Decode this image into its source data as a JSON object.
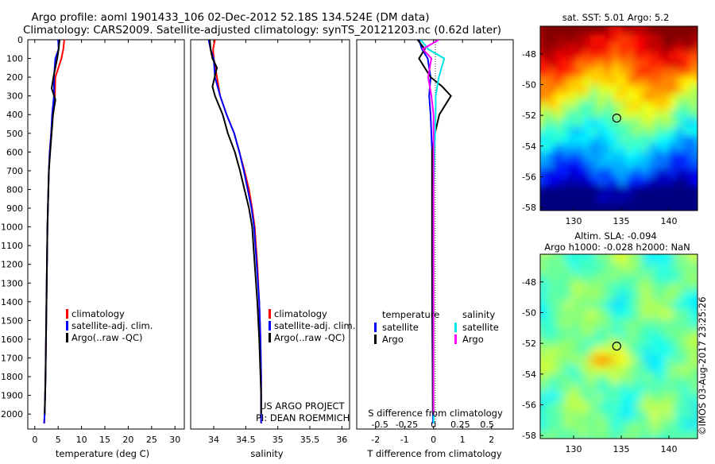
{
  "title_line1": "Argo profile: aoml 1901433_106 02-Dec-2012 52.18S 134.524E (DM data)",
  "title_line2": "Climatology: CARS2009. Satellite-adjusted climatology: synTS_20121203.nc (0.62d later)",
  "colors": {
    "clim": "#ff0000",
    "satadj": "#0000ff",
    "argo": "#000000",
    "sal_sat": "#00e5e5",
    "sal_argo": "#ff00ff"
  },
  "project_line1": "US ARGO PROJECT",
  "project_line2": "PI: DEAN ROEMMICH",
  "stamp": "©IMOS 03-Aug-2017 23:25:26",
  "chart_data": [
    {
      "type": "line",
      "id": "temperature",
      "xlabel": "temperature (deg C)",
      "xlim": [
        -1.5,
        32
      ],
      "ylim": [
        2080,
        0
      ],
      "xticks": [
        "0",
        "5",
        "10",
        "15",
        "20",
        "25",
        "30"
      ],
      "yticks": [
        "0",
        "100",
        "200",
        "300",
        "400",
        "500",
        "600",
        "700",
        "800",
        "900",
        "1000",
        "1100",
        "1200",
        "1300",
        "1400",
        "1500",
        "1600",
        "1700",
        "1800",
        "1900",
        "2000"
      ],
      "legend": [
        "climatology",
        "satellite-adj. clim.",
        "Argo(..raw -QC)"
      ],
      "series": [
        {
          "name": "climatology",
          "color": "clim",
          "x": [
            6.3,
            6.1,
            5.7,
            4.4,
            4.3,
            3.8,
            3.5,
            3.2,
            3.0,
            2.9,
            2.8,
            2.7,
            2.6,
            2.5,
            2.4,
            2.3,
            2.2,
            2.1,
            2.0
          ],
          "y": [
            0,
            50,
            100,
            200,
            300,
            400,
            500,
            600,
            700,
            800,
            900,
            1000,
            1200,
            1400,
            1600,
            1800,
            1900,
            2000,
            2050
          ]
        },
        {
          "name": "satellite-adj. clim.",
          "color": "satadj",
          "x": [
            5.0,
            5.1,
            4.4,
            4.1,
            4.1,
            3.7,
            3.5,
            3.2,
            3.0,
            2.9,
            2.8,
            2.7,
            2.6,
            2.5,
            2.4,
            2.3,
            2.2,
            2.1,
            2.0
          ],
          "y": [
            0,
            50,
            100,
            200,
            300,
            400,
            500,
            600,
            700,
            800,
            900,
            1000,
            1200,
            1400,
            1600,
            1800,
            1900,
            2000,
            2050
          ]
        },
        {
          "name": "Argo(..raw -QC)",
          "color": "argo",
          "x": [
            5.3,
            5.1,
            4.8,
            4.0,
            3.6,
            4.4,
            3.9,
            3.6,
            3.3,
            3.0,
            2.9,
            2.8,
            2.7,
            2.6,
            2.5,
            2.4,
            2.3,
            2.2,
            2.1
          ],
          "y": [
            0,
            50,
            100,
            200,
            260,
            320,
            400,
            500,
            600,
            700,
            800,
            900,
            1000,
            1200,
            1400,
            1600,
            1800,
            1900,
            2000
          ]
        }
      ]
    },
    {
      "type": "line",
      "id": "salinity",
      "xlabel": "salinity",
      "xlim": [
        33.64,
        36.12
      ],
      "ylim": [
        2080,
        0
      ],
      "xticks": [
        "34",
        "34.5",
        "35",
        "35.5",
        "36"
      ],
      "legend": [
        "climatology",
        "satellite-adj. clim.",
        "Argo(..raw -QC)"
      ],
      "series": [
        {
          "name": "climatology",
          "color": "clim",
          "x": [
            34.02,
            33.99,
            34.0,
            34.05,
            34.1,
            34.2,
            34.32,
            34.4,
            34.48,
            34.55,
            34.6,
            34.64,
            34.68,
            34.71,
            34.73,
            34.74,
            34.74
          ],
          "y": [
            0,
            50,
            100,
            200,
            300,
            400,
            500,
            600,
            700,
            800,
            900,
            1000,
            1200,
            1400,
            1600,
            1800,
            2050
          ]
        },
        {
          "name": "satellite-adj. clim.",
          "color": "satadj",
          "x": [
            33.92,
            33.95,
            34.0,
            34.02,
            34.1,
            34.2,
            34.32,
            34.4,
            34.47,
            34.53,
            34.59,
            34.63,
            34.67,
            34.71,
            34.73,
            34.74,
            34.74
          ],
          "y": [
            0,
            50,
            100,
            200,
            300,
            400,
            500,
            600,
            700,
            800,
            900,
            1000,
            1200,
            1400,
            1600,
            1800,
            2050
          ]
        },
        {
          "name": "Argo(..raw -QC)",
          "color": "argo",
          "x": [
            33.94,
            33.95,
            33.98,
            34.05,
            33.98,
            34.02,
            34.14,
            34.22,
            34.33,
            34.41,
            34.48,
            34.55,
            34.6,
            34.64,
            34.68,
            34.71,
            34.73,
            34.74,
            34.74
          ],
          "y": [
            0,
            50,
            100,
            150,
            250,
            300,
            400,
            500,
            600,
            700,
            800,
            900,
            1000,
            1200,
            1400,
            1600,
            1800,
            1900,
            2000
          ]
        }
      ]
    },
    {
      "type": "line",
      "id": "differences",
      "xlabel": "T difference from climatology",
      "xlabel_top": "S difference from climatology",
      "xlim": [
        -2.65,
        2.75
      ],
      "ylim": [
        2080,
        0
      ],
      "xticks": [
        "-2",
        "-1",
        "0",
        "1",
        "2"
      ],
      "xticks_top": [
        "-0.5",
        "-0.25",
        "0",
        "0.25",
        "0.5"
      ],
      "legend_left_title": "temperature",
      "legend_left": [
        "satellite",
        "Argo"
      ],
      "legend_right_title": "salinity",
      "legend_right": [
        "satellite",
        "Argo"
      ],
      "series": [
        {
          "name": "temperature satellite",
          "color": "satadj",
          "x": [
            -0.5,
            -0.4,
            -0.2,
            -0.1,
            -0.15,
            -0.1,
            -0.05,
            -0.05,
            -0.05,
            -0.05,
            -0.05,
            -0.03,
            -0.02
          ],
          "y": [
            0,
            50,
            100,
            200,
            300,
            400,
            600,
            800,
            1000,
            1200,
            1400,
            1800,
            2050
          ]
        },
        {
          "name": "temperature Argo",
          "color": "argo",
          "x": [
            -0.55,
            -0.3,
            -0.5,
            -0.1,
            0.3,
            0.6,
            0.2,
            0.05,
            -0.05,
            -0.05,
            -0.05,
            -0.05,
            -0.03,
            -0.02
          ],
          "y": [
            0,
            50,
            100,
            200,
            250,
            300,
            400,
            500,
            600,
            800,
            1000,
            1200,
            1600,
            2000
          ]
        },
        {
          "name": "salinity satellite",
          "color": "sal_sat",
          "x": [
            -0.12,
            -0.05,
            0.1,
            0.05,
            0.02,
            0.02,
            0.01,
            0.0,
            0.0,
            0.0,
            0.0
          ],
          "y": [
            0,
            50,
            100,
            200,
            300,
            400,
            600,
            800,
            1200,
            1600,
            2050
          ]
        },
        {
          "name": "salinity Argo",
          "color": "sal_argo",
          "x": [
            0.05,
            -0.1,
            -0.02,
            -0.05,
            -0.02,
            0.0,
            0.0,
            0.0,
            0.0,
            0.0
          ],
          "y": [
            0,
            50,
            100,
            200,
            300,
            400,
            600,
            1000,
            1600,
            2000
          ]
        }
      ]
    },
    {
      "type": "heatmap",
      "id": "sst_map",
      "title": "sat. SST: 5.01 Argo: 5.2",
      "xlim": [
        126.5,
        143
      ],
      "ylim": [
        -58.2,
        -46.2
      ],
      "xticks": [
        "130",
        "135",
        "140"
      ],
      "yticks": [
        "-48",
        "-50",
        "-52",
        "-54",
        "-56",
        "-58"
      ],
      "marker": {
        "lon": 134.524,
        "lat": -52.18
      }
    },
    {
      "type": "heatmap",
      "id": "sla_map",
      "title_line1": "Altim. SLA: -0.094",
      "title_line2": "Argo h1000: -0.028 h2000: NaN",
      "xlim": [
        126.5,
        143
      ],
      "ylim": [
        -58.2,
        -46.2
      ],
      "xticks": [
        "130",
        "135",
        "140"
      ],
      "yticks": [
        "-48",
        "-50",
        "-52",
        "-54",
        "-56",
        "-58"
      ],
      "marker": {
        "lon": 134.524,
        "lat": -52.18
      }
    }
  ]
}
